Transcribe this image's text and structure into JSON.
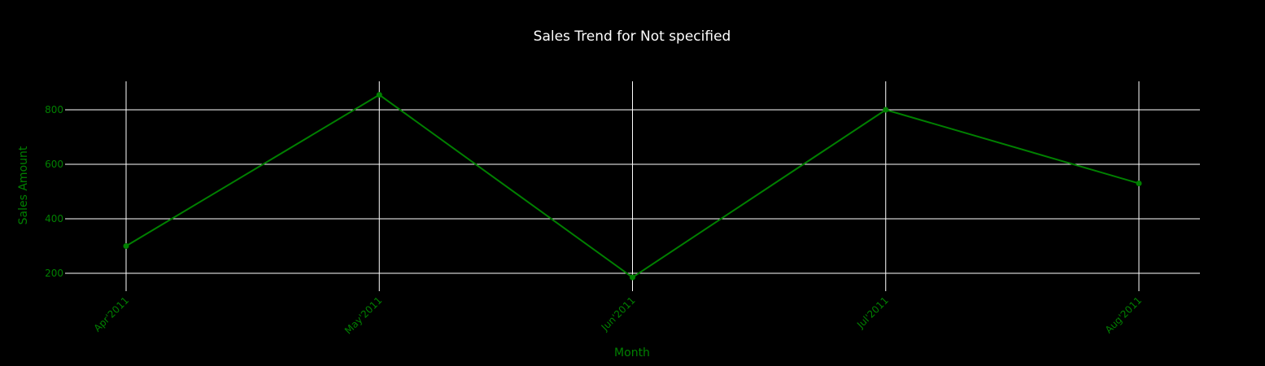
{
  "chart_data": {
    "type": "line",
    "title": "Sales Trend for Not specified",
    "xlabel": "Month",
    "ylabel": "Sales Amount",
    "categories": [
      "Apr'2011",
      "May'2011",
      "Jun'2011",
      "Jul'2011",
      "Aug'2011"
    ],
    "series": [
      {
        "values": [
          300,
          855,
          185,
          800,
          530
        ]
      }
    ],
    "yticks": [
      200,
      400,
      600,
      800
    ],
    "ylim": [
      130,
      900
    ],
    "grid": true,
    "legend": "none"
  },
  "colors": {
    "background": "#000000",
    "series": "#008000",
    "grid": "#ffffff",
    "title": "#ffffff",
    "axis_text": "#008000"
  }
}
